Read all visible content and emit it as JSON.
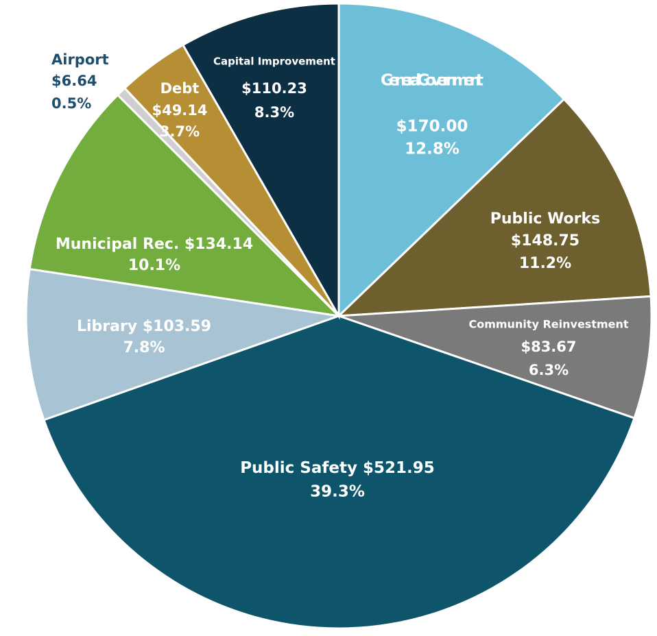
{
  "chart_data": {
    "type": "pie",
    "categories": [
      "General Government",
      "Public Works",
      "Community Reinvestment",
      "Public Safety",
      "Library",
      "Municipal Rec.",
      "Airport",
      "Debt",
      "Capital Improvement"
    ],
    "values": [
      170.0,
      148.75,
      83.67,
      521.95,
      103.59,
      134.14,
      6.64,
      49.14,
      110.23
    ],
    "value_labels": [
      "$170.00",
      "$148.75",
      "$83.67",
      "$521.95",
      "$103.59",
      "$134.14",
      "$6.64",
      "$49.14",
      "$110.23"
    ],
    "percent_labels": [
      "12.8%",
      "11.2%",
      "6.3%",
      "39.3%",
      "7.8%",
      "10.1%",
      "0.5%",
      "3.7%",
      "8.3%"
    ],
    "colors": [
      "#6cbfd7",
      "#6e5f2f",
      "#7a7a7a",
      "#0e546b",
      "#a8c4d4",
      "#72ad3e",
      "#cfcfcf",
      "#b68e34",
      "#0d2f43"
    ]
  }
}
